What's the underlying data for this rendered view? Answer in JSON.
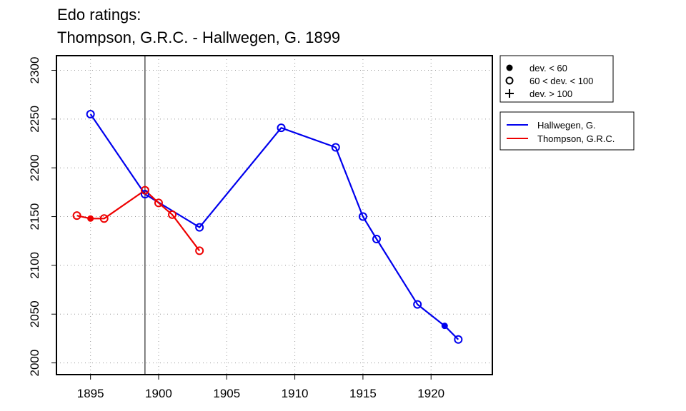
{
  "chart_data": {
    "type": "line",
    "title": [
      "Edo ratings:",
      "Thompson, G.R.C. - Hallwegen, G. 1899"
    ],
    "xlabel": "",
    "ylabel": "",
    "xlim": [
      1892.5,
      1924.5
    ],
    "ylim": [
      1988,
      2315
    ],
    "x_ticks": [
      1895,
      1900,
      1905,
      1910,
      1915,
      1920
    ],
    "y_ticks": [
      2000,
      2050,
      2100,
      2150,
      2200,
      2250,
      2300
    ],
    "grid": true,
    "vline_x": 1899,
    "legend_symbols": [
      {
        "marker": "filled-circle",
        "label": "dev. < 60"
      },
      {
        "marker": "open-circle",
        "label": "60 < dev. < 100"
      },
      {
        "marker": "plus",
        "label": "dev. > 100"
      }
    ],
    "series": [
      {
        "name": "Hallwegen, G.",
        "color": "#0000ee",
        "points": [
          {
            "x": 1895,
            "y": 2255,
            "marker": "open-circle"
          },
          {
            "x": 1899,
            "y": 2173,
            "marker": "open-circle"
          },
          {
            "x": 1903,
            "y": 2139,
            "marker": "open-circle"
          },
          {
            "x": 1909,
            "y": 2241,
            "marker": "open-circle"
          },
          {
            "x": 1913,
            "y": 2221,
            "marker": "open-circle"
          },
          {
            "x": 1915,
            "y": 2150,
            "marker": "open-circle"
          },
          {
            "x": 1916,
            "y": 2127,
            "marker": "open-circle"
          },
          {
            "x": 1919,
            "y": 2060,
            "marker": "open-circle"
          },
          {
            "x": 1921,
            "y": 2038,
            "marker": "filled-circle"
          },
          {
            "x": 1922,
            "y": 2024,
            "marker": "open-circle"
          }
        ]
      },
      {
        "name": "Thompson, G.R.C.",
        "color": "#ee0000",
        "points": [
          {
            "x": 1894,
            "y": 2151,
            "marker": "open-circle"
          },
          {
            "x": 1895,
            "y": 2148,
            "marker": "filled-circle"
          },
          {
            "x": 1896,
            "y": 2148,
            "marker": "open-circle"
          },
          {
            "x": 1899,
            "y": 2177,
            "marker": "open-circle"
          },
          {
            "x": 1900,
            "y": 2164,
            "marker": "open-circle"
          },
          {
            "x": 1901,
            "y": 2152,
            "marker": "open-circle"
          },
          {
            "x": 1903,
            "y": 2115,
            "marker": "open-circle"
          }
        ]
      }
    ]
  }
}
